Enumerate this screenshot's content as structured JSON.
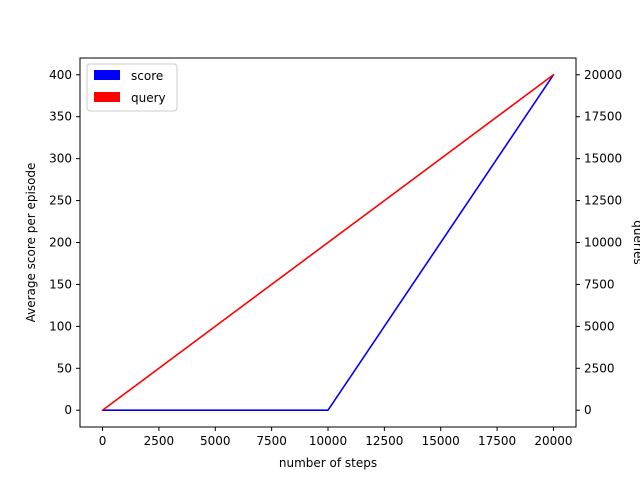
{
  "chart_data": {
    "type": "line",
    "title": "",
    "xlabel": "number of steps",
    "ylabel": "Average score per episode",
    "y2label": "queries",
    "xlim": [
      -1000,
      21000
    ],
    "ylim": [
      -20,
      420
    ],
    "y2lim": [
      -1000,
      21000
    ],
    "xticks": [
      0,
      2500,
      5000,
      7500,
      10000,
      12500,
      15000,
      17500,
      20000
    ],
    "yticks": [
      0,
      50,
      100,
      150,
      200,
      250,
      300,
      350,
      400
    ],
    "y2ticks": [
      0,
      2500,
      5000,
      7500,
      10000,
      12500,
      15000,
      17500,
      20000
    ],
    "grid": false,
    "legend_position": "top-left",
    "series": [
      {
        "name": "score",
        "axis": "left",
        "color": "#0000ff",
        "x": [
          0,
          10000,
          20000
        ],
        "y": [
          0,
          0,
          400
        ]
      },
      {
        "name": "query",
        "axis": "right",
        "color": "#ff0000",
        "x": [
          0,
          20000
        ],
        "y": [
          0,
          20000
        ]
      }
    ]
  }
}
